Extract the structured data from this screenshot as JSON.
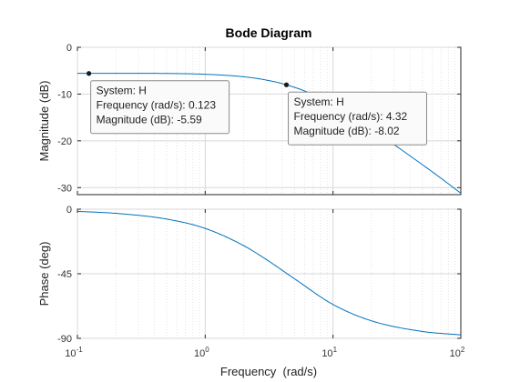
{
  "chart_data": {
    "type": "line",
    "title": "Bode Diagram",
    "xlabel": "Frequency  (rad/s)",
    "x_scale": "log",
    "xlim": [
      0.1,
      100
    ],
    "x_ticks": [
      {
        "value": 0.1,
        "base": "10",
        "exp": "-1"
      },
      {
        "value": 1,
        "base": "10",
        "exp": "0"
      },
      {
        "value": 10,
        "base": "10",
        "exp": "1"
      },
      {
        "value": 100,
        "base": "10",
        "exp": "2"
      }
    ],
    "grid": true,
    "line_color": "#0072bd",
    "panels": [
      {
        "name": "magnitude",
        "ylabel": "Magnitude (dB)",
        "ylim": [
          -31.5,
          0
        ],
        "y_ticks": [
          0,
          -10,
          -20,
          -30
        ],
        "series": [
          {
            "x": [
              0.1,
              0.3,
              1,
              2,
              3,
              4.32,
              7,
              10,
              20,
              40,
              70,
              100
            ],
            "y": [
              -5.57,
              -5.57,
              -5.77,
              -6.3,
              -7.0,
              -8.02,
              -10.1,
              -12.4,
              -17.5,
              -23.2,
              -28.0,
              -31.2
            ]
          }
        ],
        "datatips": [
          {
            "x": 0.123,
            "y": -5.59,
            "lines": [
              "System: H",
              "Frequency (rad/s): 0.123",
              "Magnitude (dB): -5.59"
            ]
          },
          {
            "x": 4.32,
            "y": -8.02,
            "lines": [
              "System: H",
              "Frequency (rad/s): 4.32",
              "Magnitude (dB): -8.02"
            ]
          }
        ]
      },
      {
        "name": "phase",
        "ylabel": "Phase (deg)",
        "ylim": [
          -90,
          0
        ],
        "y_ticks": [
          0,
          -45,
          -90
        ],
        "series": [
          {
            "x": [
              0.1,
              0.2,
              0.5,
              1,
              2,
              3,
              5,
              10,
              20,
              50,
              100
            ],
            "y": [
              -1.5,
              -2.9,
              -6.9,
              -13.4,
              -25.4,
              -35,
              -48.5,
              -66.4,
              -77.8,
              -85.2,
              -87.6
            ]
          }
        ]
      }
    ]
  }
}
